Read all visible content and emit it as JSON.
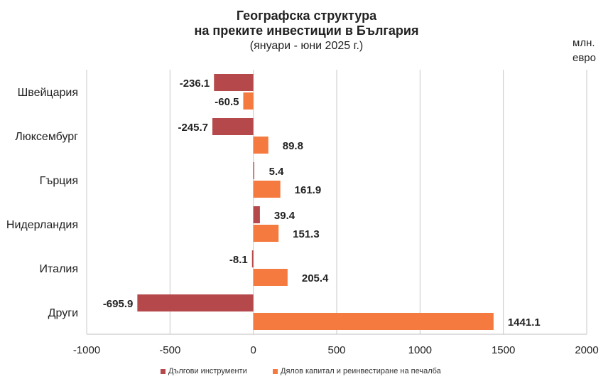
{
  "colors": {
    "debt": "#b5484b",
    "equity": "#f47a40",
    "grid": "#c9c9c9",
    "axis": "#bfbfbf"
  },
  "chart_data": {
    "type": "bar",
    "orientation": "horizontal",
    "title": "Географска структура",
    "subtitle_line2": "на преките инвестиции в България",
    "subtitle_line3": "(януари - юни 2025 г.)",
    "unit_line1": "млн.",
    "unit_line2": "евро",
    "categories": [
      "Швейцария",
      "Люксембург",
      "Гърция",
      "Нидерландия",
      "Италия",
      "Други"
    ],
    "series": [
      {
        "name": "Дългови инструменти",
        "values": [
          -236.1,
          -245.7,
          5.4,
          39.4,
          -8.1,
          -695.9
        ]
      },
      {
        "name": "Дялов капитал и реинвестиране на печалба",
        "values": [
          -60.5,
          89.8,
          161.9,
          151.3,
          205.4,
          1441.1
        ]
      }
    ],
    "xlim": [
      -1000,
      2000
    ],
    "xticks": [
      -1000,
      -500,
      0,
      500,
      1000,
      1500,
      2000
    ],
    "grid": true,
    "legend": "bottom"
  }
}
